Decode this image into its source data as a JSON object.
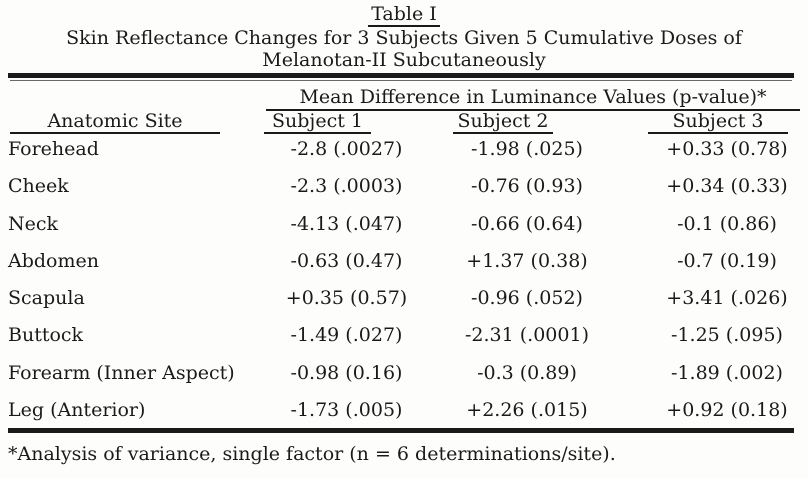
{
  "colors": {
    "ink": "#1a1a1a",
    "paper": "#fdfdfc"
  },
  "title": {
    "label": "Table I",
    "caption_line1": "Skin Reflectance Changes for 3 Subjects Given 5 Cumulative Doses of",
    "caption_line2": "Melanotan-II Subcutaneously"
  },
  "table": {
    "group_header": "Mean Difference in Luminance Values (p-value)*",
    "columns": [
      "Anatomic Site",
      "Subject 1",
      "Subject 2",
      "Subject 3"
    ],
    "rows": [
      {
        "site": "Forehead",
        "s1": "-2.8 (.0027)",
        "s2": "-1.98 (.025)",
        "s3": "+0.33 (0.78)"
      },
      {
        "site": "Cheek",
        "s1": "-2.3 (.0003)",
        "s2": "-0.76 (0.93)",
        "s3": "+0.34 (0.33)"
      },
      {
        "site": "Neck",
        "s1": "-4.13 (.047)",
        "s2": "-0.66 (0.64)",
        "s3": "-0.1 (0.86)"
      },
      {
        "site": "Abdomen",
        "s1": "-0.63 (0.47)",
        "s2": "+1.37 (0.38)",
        "s3": "-0.7 (0.19)"
      },
      {
        "site": "Scapula",
        "s1": "+0.35 (0.57)",
        "s2": "-0.96 (.052)",
        "s3": "+3.41 (.026)"
      },
      {
        "site": "Buttock",
        "s1": "-1.49 (.027)",
        "s2": "-2.31 (.0001)",
        "s3": "-1.25 (.095)"
      },
      {
        "site": "Forearm (Inner Aspect)",
        "s1": "-0.98 (0.16)",
        "s2": "-0.3 (0.89)",
        "s3": "-1.89 (.002)"
      },
      {
        "site": "Leg (Anterior)",
        "s1": "-1.73 (.005)",
        "s2": "+2.26 (.015)",
        "s3": "+0.92 (0.18)"
      }
    ],
    "footnote": "*Analysis of variance, single factor (n = 6 determinations/site)."
  }
}
